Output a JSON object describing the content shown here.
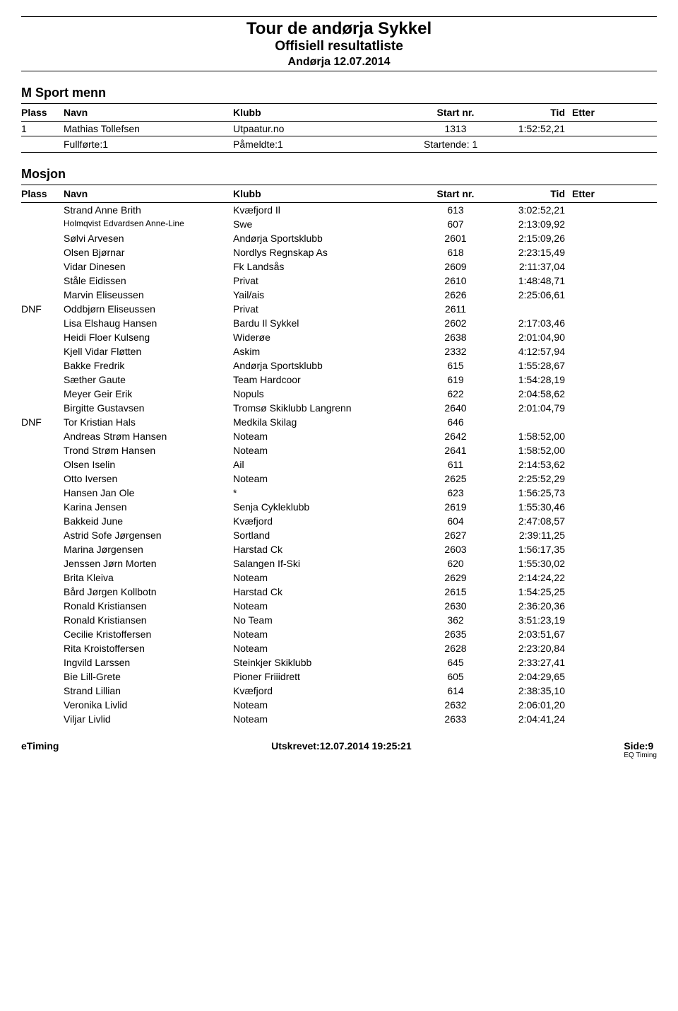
{
  "header": {
    "title": "Tour de andørja Sykkel",
    "subtitle": "Offisiell resultatliste",
    "location": "Andørja 12.07.2014"
  },
  "columns": {
    "plass": "Plass",
    "navn": "Navn",
    "klubb": "Klubb",
    "start": "Start nr.",
    "tid": "Tid",
    "etter": "Etter"
  },
  "section1": {
    "title": "M Sport menn",
    "rows": [
      {
        "plass": "1",
        "navn": "Mathias Tollefsen",
        "klubb": "Utpaatur.no",
        "start": "1313",
        "tid": "1:52:52,21",
        "etter": ""
      }
    ],
    "footer": {
      "fullforte": "Fullførte:1",
      "pameldte": "Påmeldte:1",
      "startende": "Startende: 1"
    }
  },
  "section2": {
    "title": "Mosjon",
    "rows": [
      {
        "plass": "",
        "navn": "Strand Anne Brith",
        "klubb": "Kvæfjord Il",
        "start": "613",
        "tid": "3:02:52,21",
        "etter": "",
        "small": false
      },
      {
        "plass": "",
        "navn": "Holmqvist Edvardsen Anne-Line",
        "klubb": "Swe",
        "start": "607",
        "tid": "2:13:09,92",
        "etter": "",
        "small": true
      },
      {
        "plass": "",
        "navn": "Sølvi Arvesen",
        "klubb": "Andørja Sportsklubb",
        "start": "2601",
        "tid": "2:15:09,26",
        "etter": "",
        "small": false
      },
      {
        "plass": "",
        "navn": "Olsen Bjørnar",
        "klubb": "Nordlys Regnskap As",
        "start": "618",
        "tid": "2:23:15,49",
        "etter": "",
        "small": false
      },
      {
        "plass": "",
        "navn": "Vidar Dinesen",
        "klubb": "Fk Landsås",
        "start": "2609",
        "tid": "2:11:37,04",
        "etter": "",
        "small": false
      },
      {
        "plass": "",
        "navn": "Ståle Eidissen",
        "klubb": "Privat",
        "start": "2610",
        "tid": "1:48:48,71",
        "etter": "",
        "small": false
      },
      {
        "plass": "",
        "navn": "Marvin Eliseussen",
        "klubb": "Yail/ais",
        "start": "2626",
        "tid": "2:25:06,61",
        "etter": "",
        "small": false
      },
      {
        "plass": "DNF",
        "navn": "Oddbjørn Eliseussen",
        "klubb": "Privat",
        "start": "2611",
        "tid": "",
        "etter": "",
        "small": false
      },
      {
        "plass": "",
        "navn": "Lisa Elshaug Hansen",
        "klubb": "Bardu Il Sykkel",
        "start": "2602",
        "tid": "2:17:03,46",
        "etter": "",
        "small": false
      },
      {
        "plass": "",
        "navn": "Heidi Floer Kulseng",
        "klubb": "Widerøe",
        "start": "2638",
        "tid": "2:01:04,90",
        "etter": "",
        "small": false
      },
      {
        "plass": "",
        "navn": "Kjell Vidar Fløtten",
        "klubb": "Askim",
        "start": "2332",
        "tid": "4:12:57,94",
        "etter": "",
        "small": false
      },
      {
        "plass": "",
        "navn": "Bakke Fredrik",
        "klubb": "Andørja Sportsklubb",
        "start": "615",
        "tid": "1:55:28,67",
        "etter": "",
        "small": false
      },
      {
        "plass": "",
        "navn": "Sæther Gaute",
        "klubb": "Team Hardcoor",
        "start": "619",
        "tid": "1:54:28,19",
        "etter": "",
        "small": false
      },
      {
        "plass": "",
        "navn": "Meyer Geir Erik",
        "klubb": "Nopuls",
        "start": "622",
        "tid": "2:04:58,62",
        "etter": "",
        "small": false
      },
      {
        "plass": "",
        "navn": "Birgitte Gustavsen",
        "klubb": "Tromsø Skiklubb Langrenn",
        "start": "2640",
        "tid": "2:01:04,79",
        "etter": "",
        "small": false
      },
      {
        "plass": "DNF",
        "navn": "Tor Kristian Hals",
        "klubb": "Medkila Skilag",
        "start": "646",
        "tid": "",
        "etter": "",
        "small": false
      },
      {
        "plass": "",
        "navn": "Andreas Strøm Hansen",
        "klubb": "Noteam",
        "start": "2642",
        "tid": "1:58:52,00",
        "etter": "",
        "small": false
      },
      {
        "plass": "",
        "navn": "Trond Strøm Hansen",
        "klubb": "Noteam",
        "start": "2641",
        "tid": "1:58:52,00",
        "etter": "",
        "small": false
      },
      {
        "plass": "",
        "navn": "Olsen Iselin",
        "klubb": "Ail",
        "start": "611",
        "tid": "2:14:53,62",
        "etter": "",
        "small": false
      },
      {
        "plass": "",
        "navn": "Otto Iversen",
        "klubb": "Noteam",
        "start": "2625",
        "tid": "2:25:52,29",
        "etter": "",
        "small": false
      },
      {
        "plass": "",
        "navn": "Hansen Jan Ole",
        "klubb": "*",
        "start": "623",
        "tid": "1:56:25,73",
        "etter": "",
        "small": false
      },
      {
        "plass": "",
        "navn": "Karina Jensen",
        "klubb": "Senja Cykleklubb",
        "start": "2619",
        "tid": "1:55:30,46",
        "etter": "",
        "small": false
      },
      {
        "plass": "",
        "navn": "Bakkeid June",
        "klubb": "Kvæfjord",
        "start": "604",
        "tid": "2:47:08,57",
        "etter": "",
        "small": false
      },
      {
        "plass": "",
        "navn": "Astrid Sofe Jørgensen",
        "klubb": "Sortland",
        "start": "2627",
        "tid": "2:39:11,25",
        "etter": "",
        "small": false
      },
      {
        "plass": "",
        "navn": "Marina Jørgensen",
        "klubb": "Harstad Ck",
        "start": "2603",
        "tid": "1:56:17,35",
        "etter": "",
        "small": false
      },
      {
        "plass": "",
        "navn": "Jenssen Jørn Morten",
        "klubb": "Salangen If-Ski",
        "start": "620",
        "tid": "1:55:30,02",
        "etter": "",
        "small": false
      },
      {
        "plass": "",
        "navn": "Brita Kleiva",
        "klubb": "Noteam",
        "start": "2629",
        "tid": "2:14:24,22",
        "etter": "",
        "small": false
      },
      {
        "plass": "",
        "navn": "Bård Jørgen Kollbotn",
        "klubb": "Harstad Ck",
        "start": "2615",
        "tid": "1:54:25,25",
        "etter": "",
        "small": false
      },
      {
        "plass": "",
        "navn": "Ronald Kristiansen",
        "klubb": "Noteam",
        "start": "2630",
        "tid": "2:36:20,36",
        "etter": "",
        "small": false
      },
      {
        "plass": "",
        "navn": "Ronald Kristiansen",
        "klubb": "No Team",
        "start": "362",
        "tid": "3:51:23,19",
        "etter": "",
        "small": false
      },
      {
        "plass": "",
        "navn": "Cecilie Kristoffersen",
        "klubb": "Noteam",
        "start": "2635",
        "tid": "2:03:51,67",
        "etter": "",
        "small": false
      },
      {
        "plass": "",
        "navn": "Rita Kroistoffersen",
        "klubb": "Noteam",
        "start": "2628",
        "tid": "2:23:20,84",
        "etter": "",
        "small": false
      },
      {
        "plass": "",
        "navn": "Ingvild Larssen",
        "klubb": "Steinkjer Skiklubb",
        "start": "645",
        "tid": "2:33:27,41",
        "etter": "",
        "small": false
      },
      {
        "plass": "",
        "navn": "Bie Lill-Grete",
        "klubb": "Pioner Friiidrett",
        "start": "605",
        "tid": "2:04:29,65",
        "etter": "",
        "small": false
      },
      {
        "plass": "",
        "navn": "Strand Lillian",
        "klubb": "Kvæfjord",
        "start": "614",
        "tid": "2:38:35,10",
        "etter": "",
        "small": false
      },
      {
        "plass": "",
        "navn": "Veronika Livlid",
        "klubb": "Noteam",
        "start": "2632",
        "tid": "2:06:01,20",
        "etter": "",
        "small": false
      },
      {
        "plass": "",
        "navn": "Viljar Livlid",
        "klubb": "Noteam",
        "start": "2633",
        "tid": "2:04:41,24",
        "etter": "",
        "small": false
      }
    ]
  },
  "pageFooter": {
    "left": "eTiming",
    "center": "Utskrevet:12.07.2014 19:25:21",
    "right": "Side:9",
    "tiny": "EQ Timing"
  }
}
